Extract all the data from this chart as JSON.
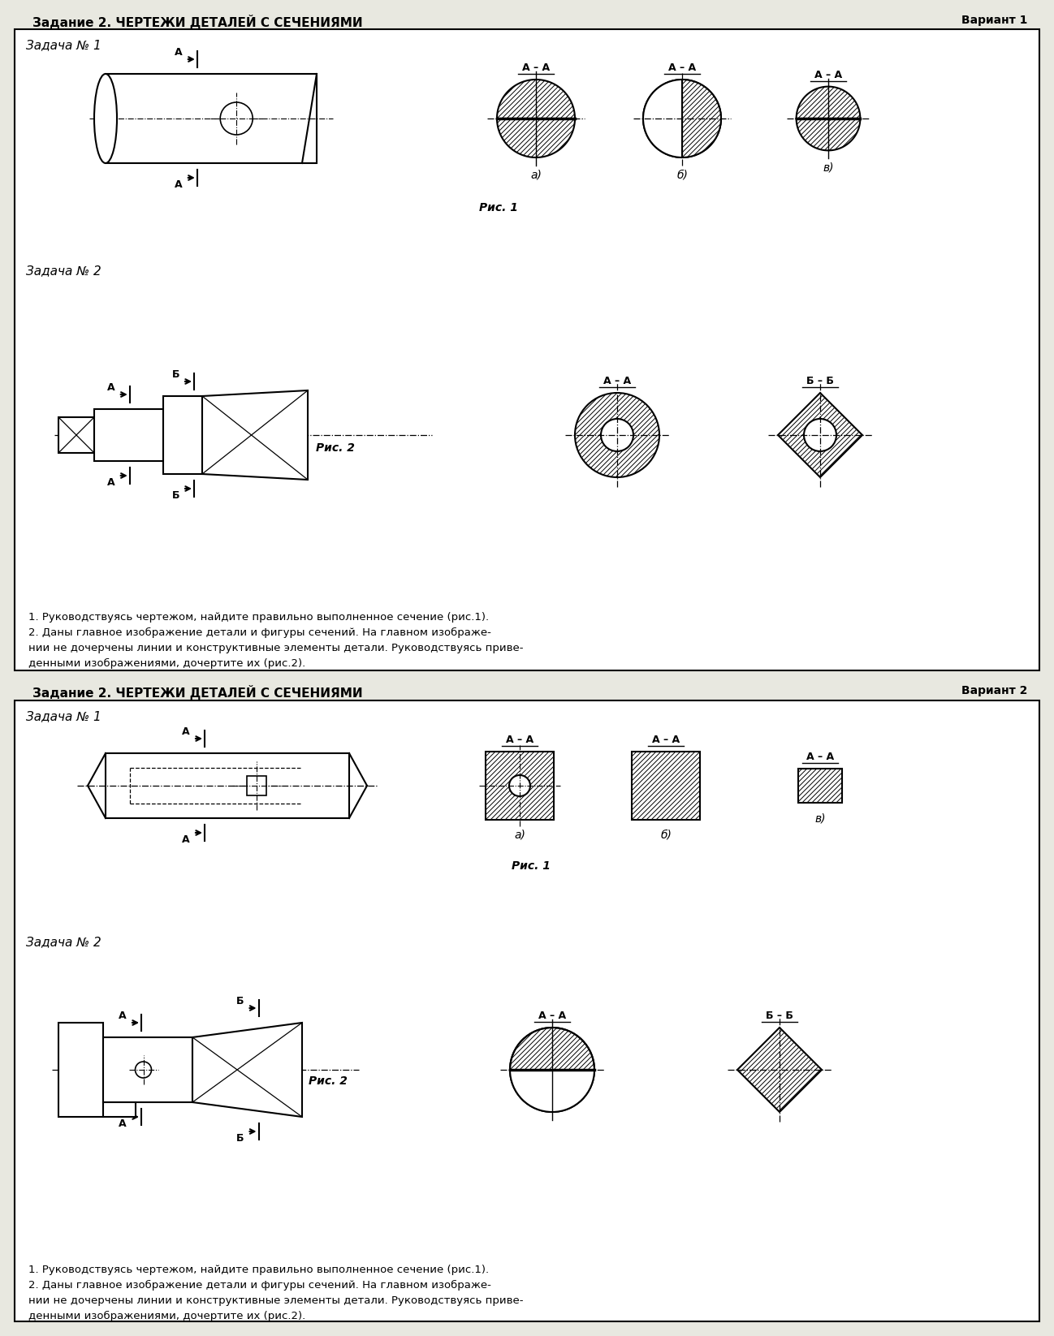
{
  "bg_color": "#e8e8e0",
  "page_bg": "#ffffff",
  "title1": "Задание 2. ЧЕРТЕЖИ ДЕТАЛЕЙ С СЕЧЕНИЯМИ",
  "variant1": "Вариант 1",
  "title2": "Задание 2. ЧЕРТЕЖИ ДЕТАЛЕЙ С СЕЧЕНИЯМИ",
  "variant2": "Вариант 2",
  "zadacha1_v1": "Задача № 1",
  "zadacha2_v1": "Задача № 2",
  "zadacha1_v2": "Задача № 1",
  "zadacha2_v2": "Задача № 2",
  "ris1": "Рис. 1",
  "ris2": "Рис. 2",
  "text_lines": [
    "1. Руководствуясь чертежом, найдите правильно выполненное сечение (рис.1).",
    "2. Даны главное изображение детали и фигуры сечений. На главном изображе-",
    "нии не дочерчены линии и конструктивные элементы детали. Руководствуясь приве-",
    "денными изображениями, дочертите их (рис.2)."
  ]
}
